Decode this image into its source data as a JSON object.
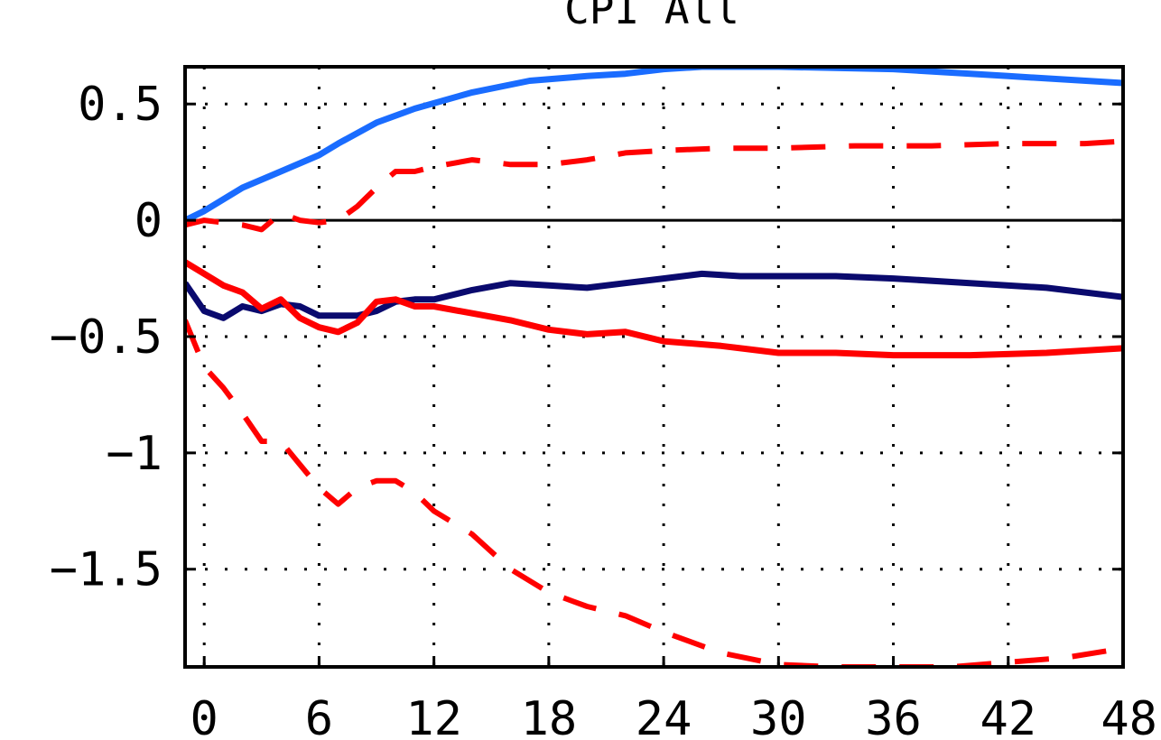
{
  "chart_data": {
    "type": "line",
    "title": "CPI All",
    "xlabel": "",
    "ylabel": "",
    "xlim": [
      -1,
      48
    ],
    "ylim": [
      -1.92,
      0.66
    ],
    "x_ticks": [
      0,
      6,
      12,
      18,
      24,
      30,
      36,
      42,
      48
    ],
    "y_ticks": [
      0.5,
      0,
      -0.5,
      -1,
      -1.5
    ],
    "y_tick_labels": [
      "0.5",
      "0",
      "−0.5",
      "−1",
      "−1.5"
    ],
    "grid": true,
    "zero_line": true,
    "colors": {
      "series_1": "#1a6cff",
      "series_2": "#0a0a6e",
      "series_3": "#ff0000",
      "series_4": "#ff0000",
      "series_5": "#ff0000"
    },
    "series": [
      {
        "style": "solid",
        "color": "#1a6cff",
        "x": [
          -1,
          0,
          2,
          4,
          6,
          7,
          9,
          11,
          14,
          17,
          20,
          22,
          24,
          26,
          30,
          36,
          42,
          48
        ],
        "values": [
          0.0,
          0.04,
          0.14,
          0.21,
          0.28,
          0.33,
          0.42,
          0.48,
          0.55,
          0.6,
          0.62,
          0.63,
          0.65,
          0.66,
          0.66,
          0.65,
          0.62,
          0.59
        ]
      },
      {
        "style": "solid",
        "color": "#0a0a6e",
        "x": [
          -1,
          0,
          1,
          2,
          3,
          4,
          5,
          6,
          7,
          8,
          9,
          10,
          11,
          12,
          14,
          16,
          18,
          20,
          22,
          24,
          26,
          28,
          30,
          33,
          36,
          40,
          44,
          48
        ],
        "values": [
          -0.27,
          -0.39,
          -0.42,
          -0.37,
          -0.39,
          -0.36,
          -0.37,
          -0.41,
          -0.41,
          -0.41,
          -0.39,
          -0.35,
          -0.34,
          -0.34,
          -0.3,
          -0.27,
          -0.28,
          -0.29,
          -0.27,
          -0.25,
          -0.23,
          -0.24,
          -0.24,
          -0.24,
          -0.25,
          -0.27,
          -0.29,
          -0.33
        ]
      },
      {
        "style": "solid",
        "color": "#ff0000",
        "x": [
          -1,
          0,
          1,
          2,
          3,
          4,
          5,
          6,
          7,
          8,
          9,
          10,
          11,
          12,
          14,
          16,
          18,
          20,
          22,
          24,
          27,
          30,
          33,
          36,
          40,
          44,
          48
        ],
        "values": [
          -0.18,
          -0.23,
          -0.28,
          -0.31,
          -0.38,
          -0.34,
          -0.42,
          -0.46,
          -0.48,
          -0.44,
          -0.35,
          -0.34,
          -0.37,
          -0.37,
          -0.4,
          -0.43,
          -0.47,
          -0.49,
          -0.48,
          -0.52,
          -0.54,
          -0.57,
          -0.57,
          -0.58,
          -0.58,
          -0.57,
          -0.55
        ]
      },
      {
        "style": "dashed",
        "color": "#ff0000",
        "x": [
          -1,
          0,
          2,
          3,
          4,
          5,
          6,
          7,
          8,
          9,
          10,
          11,
          12,
          14,
          16,
          18,
          20,
          22,
          24,
          27,
          30,
          34,
          38,
          42,
          46,
          48
        ],
        "values": [
          -0.02,
          0.0,
          -0.02,
          -0.04,
          0.03,
          0.0,
          -0.01,
          0.0,
          0.06,
          0.14,
          0.21,
          0.21,
          0.23,
          0.26,
          0.24,
          0.24,
          0.26,
          0.29,
          0.3,
          0.31,
          0.31,
          0.32,
          0.32,
          0.33,
          0.33,
          0.34
        ]
      },
      {
        "style": "dashed",
        "color": "#ff0000",
        "x": [
          -1,
          0,
          1,
          2,
          3,
          4,
          5,
          6,
          7,
          8,
          9,
          10,
          11,
          12,
          14,
          16,
          18,
          20,
          22,
          24,
          27,
          30,
          33,
          36,
          39,
          42,
          45,
          48
        ],
        "values": [
          -0.43,
          -0.63,
          -0.72,
          -0.83,
          -0.95,
          -0.95,
          -1.05,
          -1.15,
          -1.22,
          -1.15,
          -1.12,
          -1.12,
          -1.17,
          -1.25,
          -1.35,
          -1.5,
          -1.6,
          -1.66,
          -1.7,
          -1.77,
          -1.86,
          -1.91,
          -1.92,
          -1.92,
          -1.92,
          -1.9,
          -1.88,
          -1.84
        ]
      }
    ]
  }
}
